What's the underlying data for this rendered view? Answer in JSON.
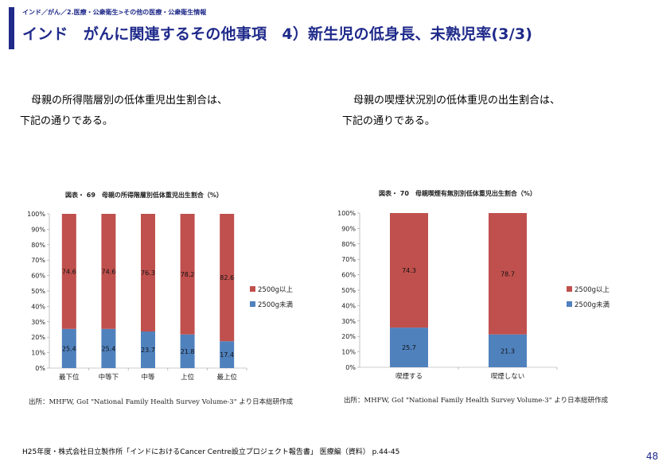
{
  "header": {
    "breadcrumb": "インド／がん／2.医療・公衆衛生>その他の医療・公衆衛生情報",
    "title": "インド　がんに関連するその他事項　4）新生児の低身長、未熟児率(3/3)"
  },
  "left": {
    "paragraph_line1": "母親の所得階層別の低体重児出生割合は、",
    "paragraph_line2": "下記の通りである。",
    "figure_title": "図表・ 69　母親の所得階層別低体重児出生割合（%）",
    "source": "出所：MHFW, GoI \"National Family Health Survey Volume-3\" より日本総研作成"
  },
  "right": {
    "paragraph_line1": "母親の喫煙状況別の低体重児の出生割合は、",
    "paragraph_line2": "下記の通りである。",
    "figure_title": "図表・ 70　母親喫煙有無別別低体重児出生割合（%）",
    "source": "出所：MHFW, GoI \"National Family Health Survey Volume-3\" より日本総研作成"
  },
  "footer": {
    "note": "H25年度・株式会社日立製作所「インドにおけるCancer Centre設立プロジェクト報告書」 医療編（資料） p.44-45",
    "page_number": "48"
  },
  "colors": {
    "brand": "#1f2a8a",
    "series_above": "#c0504d",
    "series_below": "#4f81bd"
  },
  "chart_data": [
    {
      "type": "bar",
      "stacked": "percent",
      "categories": [
        "最下位",
        "中等下",
        "中等",
        "上位",
        "最上位"
      ],
      "series": [
        {
          "name": "2500g未満",
          "values": [
            25.4,
            25.4,
            23.7,
            21.8,
            17.4
          ]
        },
        {
          "name": "2500g以上",
          "values": [
            74.6,
            74.6,
            76.3,
            78.2,
            82.6
          ]
        }
      ],
      "yticks": [
        "0%",
        "10%",
        "20%",
        "30%",
        "40%",
        "50%",
        "60%",
        "70%",
        "80%",
        "90%",
        "100%"
      ],
      "ylim": [
        0,
        100
      ],
      "legend": "right"
    },
    {
      "type": "bar",
      "stacked": "percent",
      "categories": [
        "喫煙する",
        "喫煙しない"
      ],
      "series": [
        {
          "name": "2500g未満",
          "values": [
            25.7,
            21.3
          ]
        },
        {
          "name": "2500g以上",
          "values": [
            74.3,
            78.7
          ]
        }
      ],
      "yticks": [
        "0%",
        "10%",
        "20%",
        "30%",
        "40%",
        "50%",
        "60%",
        "70%",
        "80%",
        "90%",
        "100%"
      ],
      "ylim": [
        0,
        100
      ],
      "legend": "right"
    }
  ]
}
